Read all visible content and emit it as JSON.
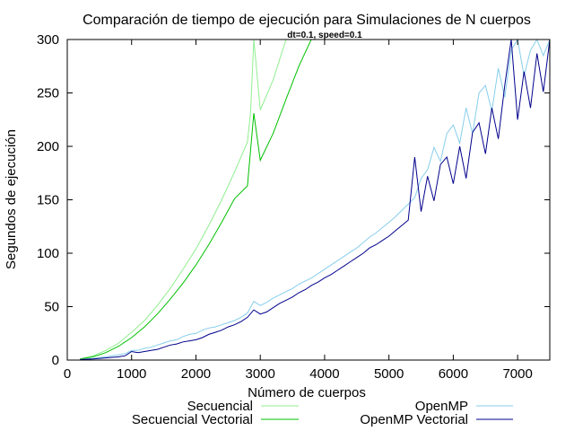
{
  "chart_data": {
    "type": "line",
    "title": "Comparación de tiempo de ejecución para Simulaciones de N cuerpos",
    "subtitle": "dt=0.1, speed=0.1",
    "xlabel": "Número de cuerpos",
    "ylabel": "Segundos de ejecución",
    "xlim": [
      0,
      7500
    ],
    "ylim": [
      0,
      300
    ],
    "xticks": [
      "0",
      "1000",
      "2000",
      "3000",
      "4000",
      "5000",
      "6000",
      "7000"
    ],
    "yticks": [
      "0",
      "50",
      "100",
      "150",
      "200",
      "250",
      "300"
    ],
    "grid": false,
    "legend_position": "bottom",
    "series": [
      {
        "name": "Secuencial",
        "color": "#90ee90",
        "x": [
          200,
          400,
          600,
          800,
          1000,
          1200,
          1400,
          1600,
          1800,
          2000,
          2200,
          2400,
          2600,
          2800,
          2850,
          2900,
          3000,
          3200,
          3400
        ],
        "y": [
          1,
          4,
          9,
          16,
          26,
          37,
          51,
          67,
          85,
          104,
          126,
          150,
          176,
          204,
          232,
          300,
          234,
          262,
          300
        ]
      },
      {
        "name": "Secuencial Vectorial",
        "color": "#00c000",
        "x": [
          200,
          400,
          600,
          800,
          1000,
          1200,
          1400,
          1600,
          1800,
          2000,
          2200,
          2400,
          2600,
          2800,
          2900,
          3000,
          3200,
          3400,
          3600,
          3800
        ],
        "y": [
          1,
          3,
          7,
          13,
          21,
          31,
          43,
          57,
          72,
          89,
          108,
          129,
          151,
          163,
          231,
          187,
          212,
          244,
          275,
          301
        ]
      },
      {
        "name": "OpenMP",
        "color": "#87ceeb",
        "x": [
          200,
          400,
          600,
          800,
          900,
          1000,
          1100,
          1200,
          1300,
          1400,
          1500,
          1600,
          1700,
          1800,
          1900,
          2000,
          2100,
          2200,
          2300,
          2400,
          2500,
          2600,
          2700,
          2800,
          2900,
          3000,
          3100,
          3200,
          3300,
          3400,
          3500,
          3600,
          3700,
          3800,
          3900,
          4000,
          4100,
          4200,
          4300,
          4400,
          4500,
          4600,
          4700,
          4800,
          4900,
          5000,
          5100,
          5200,
          5300,
          5400,
          5500,
          5600,
          5700,
          5800,
          5900,
          6000,
          6100,
          6200,
          6300,
          6400,
          6500,
          6600,
          6700,
          6800,
          6900,
          7000,
          7100,
          7200,
          7300,
          7400,
          7500
        ],
        "y": [
          0.5,
          1.5,
          3,
          5,
          6,
          9,
          9,
          11,
          12,
          14,
          16,
          18,
          19,
          22,
          24,
          25,
          28,
          30,
          31,
          33,
          35,
          37,
          40,
          44,
          55,
          51,
          54,
          58,
          61,
          64,
          67,
          71,
          74,
          77,
          81,
          85,
          89,
          93,
          97,
          101,
          105,
          110,
          115,
          119,
          124,
          129,
          134,
          140,
          146,
          152,
          170,
          178,
          199,
          186,
          212,
          220,
          203,
          236,
          212,
          250,
          257,
          233,
          273,
          246,
          290,
          300,
          266,
          290,
          300,
          285,
          300
        ]
      },
      {
        "name": "OpenMP Vectorial",
        "color": "#00008b",
        "x": [
          200,
          400,
          600,
          800,
          900,
          1000,
          1100,
          1200,
          1300,
          1400,
          1500,
          1600,
          1700,
          1800,
          1900,
          2000,
          2100,
          2200,
          2300,
          2400,
          2500,
          2600,
          2700,
          2800,
          2900,
          3000,
          3100,
          3200,
          3300,
          3400,
          3500,
          3600,
          3700,
          3800,
          3900,
          4000,
          4100,
          4200,
          4300,
          4400,
          4500,
          4600,
          4700,
          4800,
          4900,
          5000,
          5100,
          5200,
          5300,
          5400,
          5500,
          5600,
          5700,
          5800,
          5900,
          6000,
          6100,
          6200,
          6300,
          6400,
          6500,
          6600,
          6700,
          6800,
          6900,
          7000,
          7100,
          7200,
          7300,
          7400,
          7500
        ],
        "y": [
          0.5,
          1,
          2,
          3,
          4,
          8,
          7,
          8,
          9,
          10,
          12,
          14,
          15,
          17,
          18,
          19,
          21,
          24,
          26,
          28,
          31,
          33,
          36,
          40,
          47,
          43,
          45,
          49,
          53,
          56,
          59,
          63,
          66,
          70,
          73,
          77,
          80,
          84,
          88,
          92,
          96,
          100,
          105,
          108,
          112,
          116,
          121,
          126,
          131,
          190,
          139,
          172,
          149,
          183,
          190,
          165,
          200,
          170,
          213,
          222,
          193,
          236,
          207,
          257,
          300,
          225,
          270,
          236,
          287,
          251,
          300
        ]
      }
    ]
  }
}
